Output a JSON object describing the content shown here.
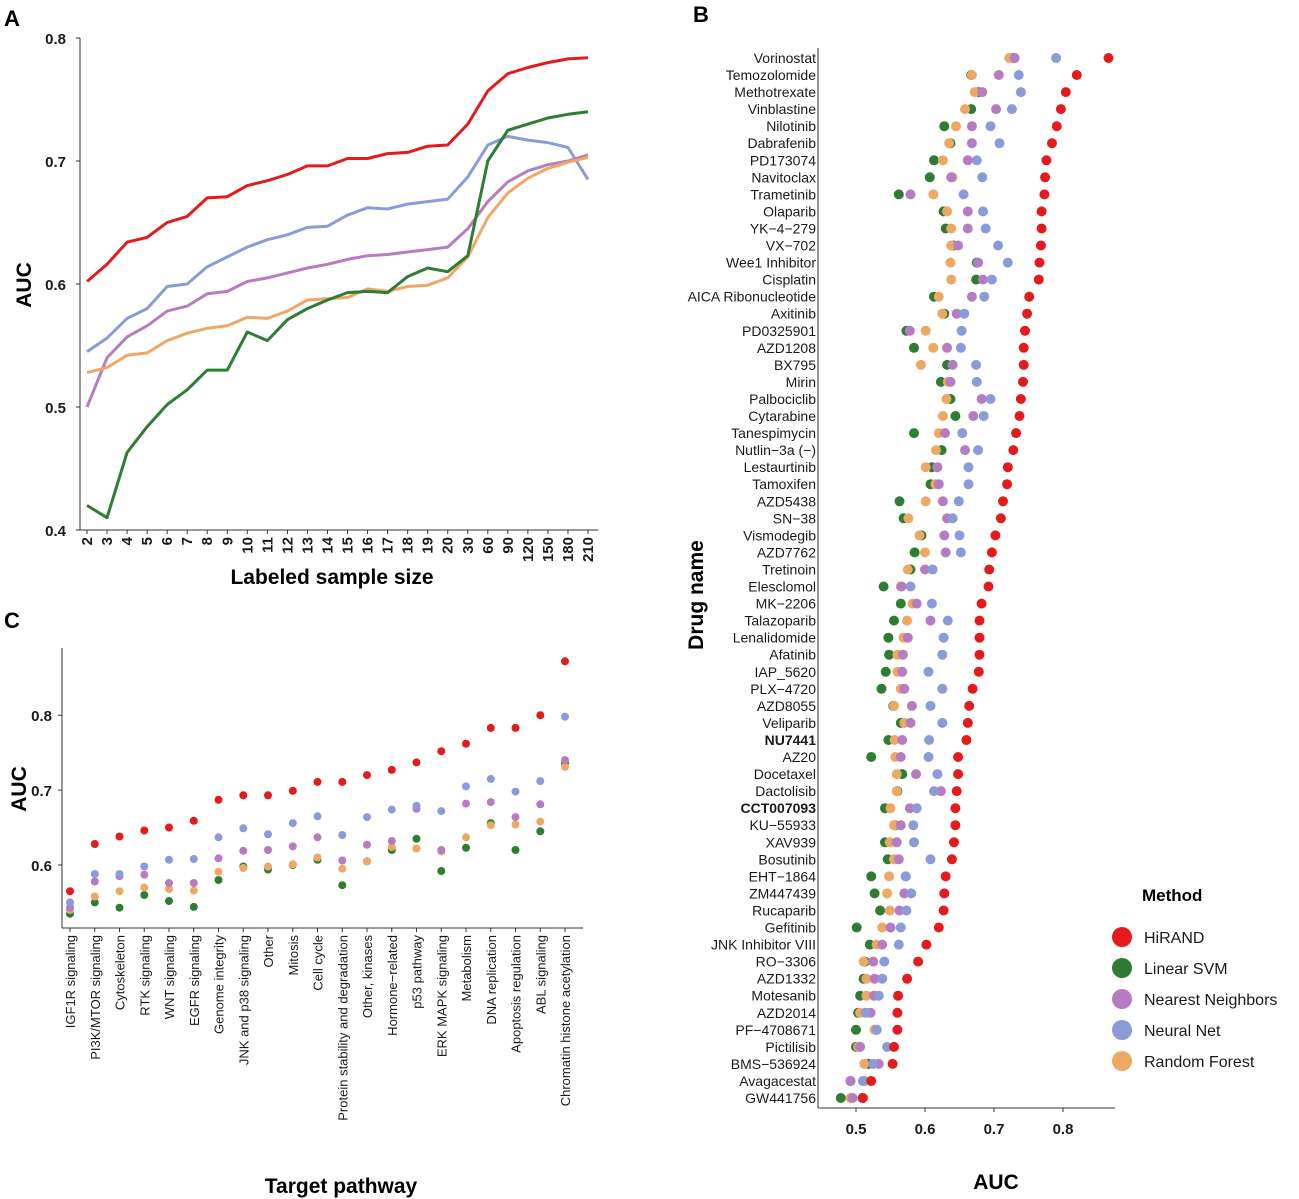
{
  "colors": {
    "HiRAND": "#e41a1c",
    "Linear SVM": "#2e7d32",
    "Nearest Neighbors": "#b77bc2",
    "Neural Net": "#8a9bd8",
    "Random Forest": "#eea866"
  },
  "chart_data": [
    {
      "id": "A",
      "panel_label": "A",
      "type": "line",
      "xlabel": "Labeled sample size",
      "ylabel": "AUC",
      "categories": [
        "2",
        "3",
        "4",
        "5",
        "6",
        "7",
        "8",
        "9",
        "10",
        "11",
        "12",
        "13",
        "14",
        "15",
        "16",
        "17",
        "18",
        "19",
        "20",
        "30",
        "60",
        "90",
        "120",
        "150",
        "180",
        "210"
      ],
      "ylim": [
        0.4,
        0.8
      ],
      "yticks": [
        "0.4",
        "0.5",
        "0.6",
        "0.7",
        "0.8"
      ],
      "series": [
        {
          "name": "HiRAND",
          "values": [
            0.602,
            0.616,
            0.634,
            0.638,
            0.65,
            0.655,
            0.67,
            0.671,
            0.68,
            0.684,
            0.689,
            0.696,
            0.696,
            0.702,
            0.702,
            0.706,
            0.707,
            0.712,
            0.713,
            0.73,
            0.757,
            0.771,
            0.776,
            0.78,
            0.783,
            0.784
          ]
        },
        {
          "name": "Neural Net",
          "values": [
            0.545,
            0.556,
            0.572,
            0.58,
            0.598,
            0.6,
            0.614,
            0.622,
            0.63,
            0.636,
            0.64,
            0.646,
            0.647,
            0.656,
            0.662,
            0.661,
            0.665,
            0.667,
            0.669,
            0.687,
            0.713,
            0.72,
            0.717,
            0.715,
            0.711,
            0.685
          ]
        },
        {
          "name": "Nearest Neighbors",
          "values": [
            0.5,
            0.54,
            0.557,
            0.566,
            0.578,
            0.582,
            0.592,
            0.594,
            0.602,
            0.605,
            0.609,
            0.613,
            0.616,
            0.62,
            0.623,
            0.624,
            0.626,
            0.628,
            0.63,
            0.645,
            0.667,
            0.683,
            0.692,
            0.697,
            0.7,
            0.705
          ]
        },
        {
          "name": "Random Forest",
          "values": [
            0.528,
            0.532,
            0.542,
            0.544,
            0.554,
            0.56,
            0.564,
            0.566,
            0.573,
            0.572,
            0.578,
            0.587,
            0.588,
            0.589,
            0.596,
            0.594,
            0.598,
            0.599,
            0.605,
            0.622,
            0.654,
            0.674,
            0.686,
            0.694,
            0.699,
            0.703
          ]
        },
        {
          "name": "Linear SVM",
          "values": [
            0.42,
            0.41,
            0.463,
            0.484,
            0.502,
            0.514,
            0.53,
            0.53,
            0.561,
            0.554,
            0.571,
            0.58,
            0.587,
            0.593,
            0.594,
            0.593,
            0.606,
            0.613,
            0.61,
            0.623,
            0.7,
            0.725,
            0.73,
            0.735,
            0.738,
            0.74
          ]
        }
      ]
    },
    {
      "id": "B",
      "panel_label": "B",
      "type": "scatter",
      "xlabel": "AUC",
      "ylabel": "Drug name",
      "xlim": [
        0.46,
        0.88
      ],
      "xticks": [
        "0.5",
        "0.6",
        "0.7",
        "0.8"
      ],
      "bold_drugs": [
        "NU7441",
        "CCT007093"
      ],
      "drugs": [
        "Vorinostat",
        "Temozolomide",
        "Methotrexate",
        "Vinblastine",
        "Nilotinib",
        "Dabrafenib",
        "PD173074",
        "Navitoclax",
        "Trametinib",
        "Olaparib",
        "YK−4−279",
        "VX−702",
        "Wee1 Inhibitor",
        "Cisplatin",
        "AICA Ribonucleotide",
        "Axitinib",
        "PD0325901",
        "AZD1208",
        "BX795",
        "Mirin",
        "Palbociclib",
        "Cytarabine",
        "Tanespimycin",
        "Nutlin−3a (−)",
        "Lestaurtinib",
        "Tamoxifen",
        "AZD5438",
        "SN−38",
        "Vismodegib",
        "AZD7762",
        "Tretinoin",
        "Elesclomol",
        "MK−2206",
        "Talazoparib",
        "Lenalidomide",
        "Afatinib",
        "IAP_5620",
        "PLX−4720",
        "AZD8055",
        "Veliparib",
        "NU7441",
        "AZ20",
        "Docetaxel",
        "Dactolisib",
        "CCT007093",
        "KU−55933",
        "XAV939",
        "Bosutinib",
        "EHT−1864",
        "ZM447439",
        "Rucaparib",
        "Gefitinib",
        "JNK Inhibitor VIII",
        "RO−3306",
        "AZD1332",
        "Motesanib",
        "AZD2014",
        "PF−4708671",
        "Pictilisib",
        "BMS−536924",
        "Avagacestat",
        "GW441756"
      ],
      "series": [
        {
          "name": "HiRAND",
          "values": [
            0.866,
            0.82,
            0.804,
            0.797,
            0.791,
            0.784,
            0.776,
            0.774,
            0.773,
            0.769,
            0.769,
            0.768,
            0.766,
            0.765,
            0.751,
            0.748,
            0.745,
            0.743,
            0.743,
            0.742,
            0.739,
            0.737,
            0.732,
            0.728,
            0.72,
            0.719,
            0.713,
            0.71,
            0.702,
            0.697,
            0.693,
            0.692,
            0.682,
            0.679,
            0.679,
            0.679,
            0.678,
            0.669,
            0.664,
            0.662,
            0.66,
            0.648,
            0.648,
            0.646,
            0.644,
            0.644,
            0.642,
            0.639,
            0.63,
            0.628,
            0.627,
            0.62,
            0.602,
            0.59,
            0.574,
            0.561,
            0.56,
            0.56,
            0.555,
            0.553,
            0.522,
            0.51
          ]
        },
        {
          "name": "Neural Net",
          "values": [
            0.79,
            0.736,
            0.739,
            0.726,
            0.695,
            0.708,
            0.675,
            0.683,
            0.656,
            0.684,
            0.688,
            0.706,
            0.72,
            0.697,
            0.686,
            0.657,
            0.653,
            0.652,
            0.674,
            0.675,
            0.695,
            0.685,
            0.654,
            0.677,
            0.663,
            0.663,
            0.649,
            0.64,
            0.65,
            0.652,
            0.611,
            0.579,
            0.61,
            0.633,
            0.627,
            0.625,
            0.605,
            0.625,
            0.608,
            0.625,
            0.606,
            0.605,
            0.618,
            0.613,
            0.588,
            0.583,
            0.584,
            0.608,
            0.572,
            0.58,
            0.573,
            0.565,
            0.562,
            0.541,
            0.538,
            0.533,
            0.514,
            0.53,
            0.545,
            0.525,
            0.51,
            0.509
          ]
        },
        {
          "name": "Nearest Neighbors",
          "values": [
            0.73,
            0.707,
            0.683,
            0.703,
            0.668,
            0.668,
            0.662,
            0.638,
            0.579,
            0.662,
            0.662,
            0.648,
            0.677,
            0.684,
            0.668,
            0.646,
            0.578,
            0.632,
            0.64,
            0.637,
            0.682,
            0.67,
            0.629,
            0.658,
            0.618,
            0.62,
            0.626,
            0.632,
            0.628,
            0.63,
            0.6,
            0.566,
            0.588,
            0.608,
            0.575,
            0.568,
            0.567,
            0.57,
            0.581,
            0.579,
            0.567,
            0.565,
            0.587,
            0.623,
            0.578,
            0.565,
            0.559,
            0.562,
            0.572,
            0.57,
            0.563,
            0.55,
            0.538,
            0.525,
            0.527,
            0.526,
            0.521,
            0.53,
            0.506,
            0.533,
            0.492,
            0.495
          ]
        },
        {
          "name": "Random Forest",
          "values": [
            0.722,
            0.668,
            0.672,
            0.658,
            0.645,
            0.635,
            0.626,
            0.64,
            0.612,
            0.632,
            0.638,
            0.638,
            0.637,
            0.638,
            0.62,
            0.625,
            0.601,
            0.612,
            0.594,
            0.633,
            0.631,
            0.626,
            0.62,
            0.616,
            0.601,
            0.615,
            0.601,
            0.576,
            0.592,
            0.6,
            0.575,
            0.565,
            0.582,
            0.574,
            0.569,
            0.56,
            0.56,
            0.565,
            0.555,
            0.57,
            0.556,
            0.557,
            0.559,
            0.559,
            0.55,
            0.555,
            0.549,
            0.555,
            0.548,
            0.545,
            0.549,
            0.538,
            0.53,
            0.511,
            0.515,
            0.515,
            0.506,
            0.527,
            0.503,
            0.512,
            0.513,
            0.492
          ]
        },
        {
          "name": "Linear SVM",
          "values": [
            0.728,
            0.667,
            0.678,
            0.667,
            0.628,
            0.637,
            0.613,
            0.607,
            0.562,
            0.627,
            0.63,
            0.641,
            0.675,
            0.674,
            0.613,
            0.628,
            0.573,
            0.584,
            0.632,
            0.623,
            0.637,
            0.644,
            0.584,
            0.624,
            0.61,
            0.608,
            0.563,
            0.569,
            0.595,
            0.585,
            0.579,
            0.54,
            0.565,
            0.555,
            0.547,
            0.548,
            0.543,
            0.537,
            0.554,
            0.565,
            0.547,
            0.522,
            0.567,
            0.56,
            0.542,
            0.557,
            0.542,
            0.546,
            0.522,
            0.527,
            0.535,
            0.501,
            0.52,
            0.513,
            0.511,
            0.506,
            0.503,
            0.5,
            0.5,
            0.518,
            0.492,
            0.478
          ]
        }
      ]
    },
    {
      "id": "C",
      "panel_label": "C",
      "type": "scatter",
      "xlabel": "Target pathway",
      "ylabel": "AUC",
      "ylim": [
        0.52,
        0.895
      ],
      "yticks": [
        "0.6",
        "0.7",
        "0.8"
      ],
      "categories": [
        "IGF1R signaling",
        "PI3K/MTOR signaling",
        "Cytoskeleton",
        "RTK signaling",
        "WNT signaling",
        "EGFR signaling",
        "Genome integrity",
        "JNK and p38 signaling",
        "Other",
        "Mitosis",
        "Cell cycle",
        "Protein stability and degradation",
        "Other, kinases",
        "Hormone−related",
        "p53 pathway",
        "ERK MAPK signaling",
        "Metabolism",
        "DNA replication",
        "Apoptosis regulation",
        "ABL signaling",
        "Chromatin histone acetylation"
      ],
      "series": [
        {
          "name": "HiRAND",
          "values": [
            0.565,
            0.628,
            0.638,
            0.646,
            0.65,
            0.659,
            0.687,
            0.693,
            0.693,
            0.699,
            0.711,
            0.711,
            0.72,
            0.727,
            0.737,
            0.752,
            0.762,
            0.783,
            0.783,
            0.8,
            0.872
          ]
        },
        {
          "name": "Neural Net",
          "values": [
            0.55,
            0.588,
            0.588,
            0.598,
            0.607,
            0.608,
            0.637,
            0.649,
            0.641,
            0.656,
            0.665,
            0.64,
            0.664,
            0.674,
            0.679,
            0.672,
            0.705,
            0.715,
            0.698,
            0.712,
            0.798
          ]
        },
        {
          "name": "Nearest Neighbors",
          "values": [
            0.543,
            0.578,
            0.585,
            0.587,
            0.576,
            0.576,
            0.609,
            0.619,
            0.62,
            0.625,
            0.637,
            0.606,
            0.627,
            0.632,
            0.675,
            0.62,
            0.682,
            0.684,
            0.664,
            0.681,
            0.74
          ]
        },
        {
          "name": "Random Forest",
          "values": [
            0.54,
            0.558,
            0.565,
            0.57,
            0.568,
            0.566,
            0.591,
            0.596,
            0.598,
            0.601,
            0.61,
            0.595,
            0.605,
            0.624,
            0.622,
            0.618,
            0.637,
            0.653,
            0.654,
            0.658,
            0.731
          ]
        },
        {
          "name": "Linear SVM",
          "values": [
            0.535,
            0.55,
            0.543,
            0.56,
            0.552,
            0.544,
            0.58,
            0.598,
            0.594,
            0.6,
            0.607,
            0.573,
            0.605,
            0.62,
            0.635,
            0.592,
            0.623,
            0.656,
            0.62,
            0.645,
            0.736
          ]
        }
      ]
    }
  ],
  "legend": {
    "title": "Method",
    "items": [
      "HiRAND",
      "Linear SVM",
      "Nearest Neighbors",
      "Neural Net",
      "Random Forest"
    ]
  }
}
